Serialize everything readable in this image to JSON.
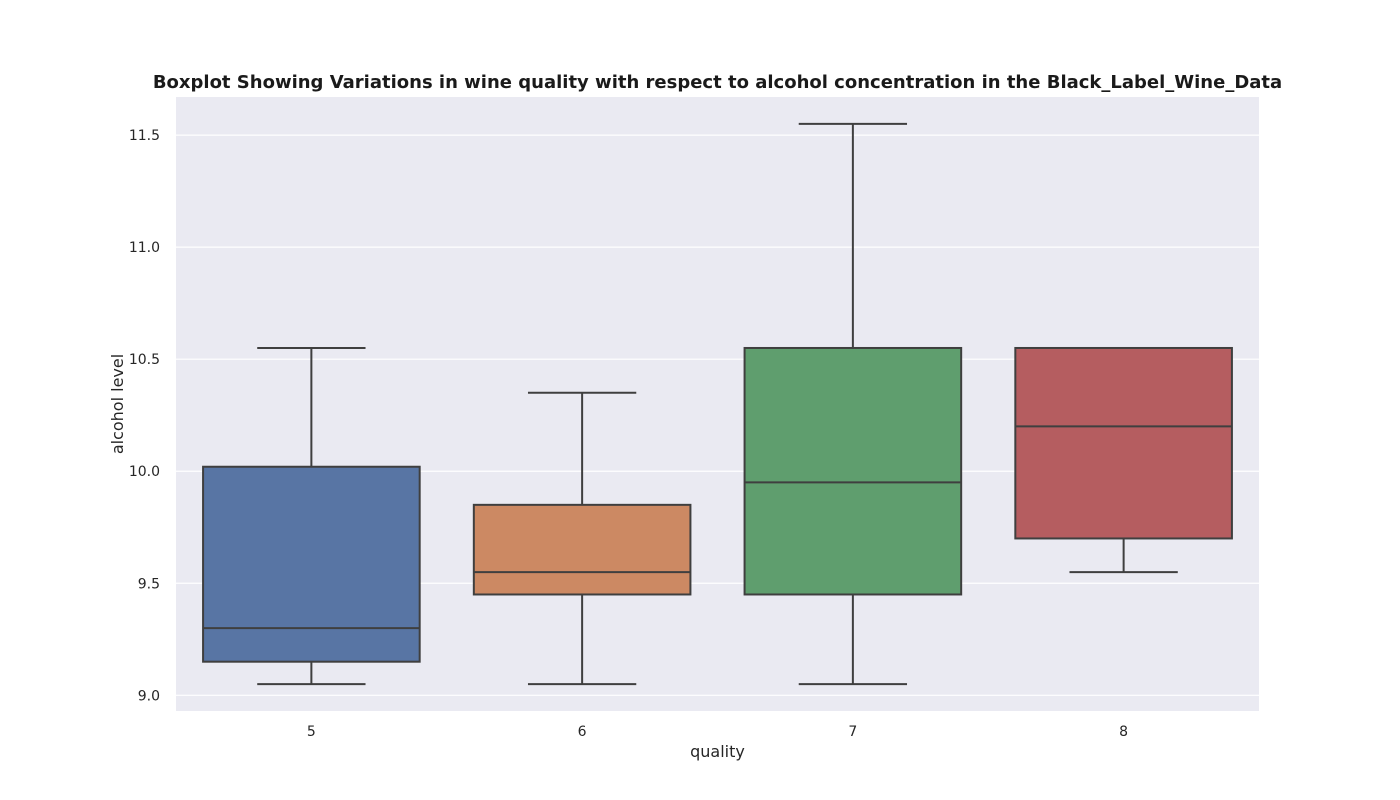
{
  "chart_data": {
    "type": "boxplot",
    "title": "Boxplot Showing Variations in wine quality with respect to alcohol concentration in the Black_Label_Wine_Data",
    "xlabel": "quality",
    "ylabel": "alcohol level",
    "categories": [
      "5",
      "6",
      "7",
      "8"
    ],
    "boxes": [
      {
        "category": "5",
        "whisker_low": 9.05,
        "q1": 9.15,
        "median": 9.3,
        "q3": 10.02,
        "whisker_high": 10.55,
        "color": "#5875a4"
      },
      {
        "category": "6",
        "whisker_low": 9.05,
        "q1": 9.45,
        "median": 9.55,
        "q3": 9.85,
        "whisker_high": 10.35,
        "color": "#cc8963"
      },
      {
        "category": "7",
        "whisker_low": 9.05,
        "q1": 9.45,
        "median": 9.95,
        "q3": 10.55,
        "whisker_high": 11.55,
        "color": "#5f9e6e"
      },
      {
        "category": "8",
        "whisker_low": 9.55,
        "q1": 9.7,
        "median": 10.2,
        "q3": 10.55,
        "whisker_high": 10.55,
        "color": "#b55d60"
      }
    ],
    "yticks": [
      "9.0",
      "9.5",
      "10.0",
      "10.5",
      "11.0",
      "11.5"
    ],
    "ylim": [
      8.93,
      11.67
    ],
    "grid": true,
    "legend": "none",
    "colors": {
      "plot_background": "#eaeaf2",
      "grid": "#ffffff",
      "box_edge": "#3f3f3f"
    }
  }
}
